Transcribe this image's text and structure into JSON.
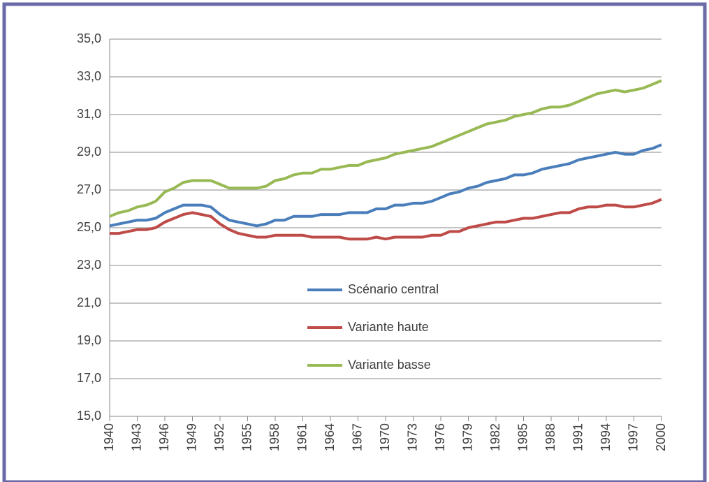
{
  "chart_data": {
    "type": "line",
    "x": [
      1940,
      1941,
      1942,
      1943,
      1944,
      1945,
      1946,
      1947,
      1948,
      1949,
      1950,
      1951,
      1952,
      1953,
      1954,
      1955,
      1956,
      1957,
      1958,
      1959,
      1960,
      1961,
      1962,
      1963,
      1964,
      1965,
      1966,
      1967,
      1968,
      1969,
      1970,
      1971,
      1972,
      1973,
      1974,
      1975,
      1976,
      1977,
      1978,
      1979,
      1980,
      1981,
      1982,
      1983,
      1984,
      1985,
      1986,
      1987,
      1988,
      1989,
      1990,
      1991,
      1992,
      1993,
      1994,
      1995,
      1996,
      1997,
      1998,
      1999,
      2000
    ],
    "series": [
      {
        "name": "Scénario central",
        "color": "#4a7ebb",
        "values": [
          25.1,
          25.2,
          25.3,
          25.4,
          25.4,
          25.5,
          25.8,
          26.0,
          26.2,
          26.2,
          26.2,
          26.1,
          25.7,
          25.4,
          25.3,
          25.2,
          25.1,
          25.2,
          25.4,
          25.4,
          25.6,
          25.6,
          25.6,
          25.7,
          25.7,
          25.7,
          25.8,
          25.8,
          25.8,
          26.0,
          26.0,
          26.2,
          26.2,
          26.3,
          26.3,
          26.4,
          26.6,
          26.8,
          26.9,
          27.1,
          27.2,
          27.4,
          27.5,
          27.6,
          27.8,
          27.8,
          27.9,
          28.1,
          28.2,
          28.3,
          28.4,
          28.6,
          28.7,
          28.8,
          28.9,
          29.0,
          28.9,
          28.9,
          29.1,
          29.2,
          29.4
        ]
      },
      {
        "name": "Variante haute",
        "color": "#be4b48",
        "values": [
          24.7,
          24.7,
          24.8,
          24.9,
          24.9,
          25.0,
          25.3,
          25.5,
          25.7,
          25.8,
          25.7,
          25.6,
          25.2,
          24.9,
          24.7,
          24.6,
          24.5,
          24.5,
          24.6,
          24.6,
          24.6,
          24.6,
          24.5,
          24.5,
          24.5,
          24.5,
          24.4,
          24.4,
          24.4,
          24.5,
          24.4,
          24.5,
          24.5,
          24.5,
          24.5,
          24.6,
          24.6,
          24.8,
          24.8,
          25.0,
          25.1,
          25.2,
          25.3,
          25.3,
          25.4,
          25.5,
          25.5,
          25.6,
          25.7,
          25.8,
          25.8,
          26.0,
          26.1,
          26.1,
          26.2,
          26.2,
          26.1,
          26.1,
          26.2,
          26.3,
          26.5
        ]
      },
      {
        "name": "Variante basse",
        "color": "#98b954",
        "values": [
          25.6,
          25.8,
          25.9,
          26.1,
          26.2,
          26.4,
          26.9,
          27.1,
          27.4,
          27.5,
          27.5,
          27.5,
          27.3,
          27.1,
          27.1,
          27.1,
          27.1,
          27.2,
          27.5,
          27.6,
          27.8,
          27.9,
          27.9,
          28.1,
          28.1,
          28.2,
          28.3,
          28.3,
          28.5,
          28.6,
          28.7,
          28.9,
          29.0,
          29.1,
          29.2,
          29.3,
          29.5,
          29.7,
          29.9,
          30.1,
          30.3,
          30.5,
          30.6,
          30.7,
          30.9,
          31.0,
          31.1,
          31.3,
          31.4,
          31.4,
          31.5,
          31.7,
          31.9,
          32.1,
          32.2,
          32.3,
          32.2,
          32.3,
          32.4,
          32.6,
          32.8
        ]
      }
    ],
    "xlim": [
      1940,
      2000
    ],
    "xticks": [
      1940,
      1943,
      1946,
      1949,
      1952,
      1955,
      1958,
      1961,
      1964,
      1967,
      1970,
      1973,
      1976,
      1979,
      1982,
      1985,
      1988,
      1991,
      1994,
      1997,
      2000
    ],
    "ylim": [
      15,
      35
    ],
    "yticks": [
      {
        "value": 15,
        "label": "15,0"
      },
      {
        "value": 17,
        "label": "17,0"
      },
      {
        "value": 19,
        "label": "19,0"
      },
      {
        "value": 21,
        "label": "21,0"
      },
      {
        "value": 23,
        "label": "23,0"
      },
      {
        "value": 25,
        "label": "25,0"
      },
      {
        "value": 27,
        "label": "27,0"
      },
      {
        "value": 29,
        "label": "29,0"
      },
      {
        "value": 31,
        "label": "31,0"
      },
      {
        "value": 33,
        "label": "33,0"
      },
      {
        "value": 35,
        "label": "35,0"
      }
    ],
    "grid": true
  }
}
